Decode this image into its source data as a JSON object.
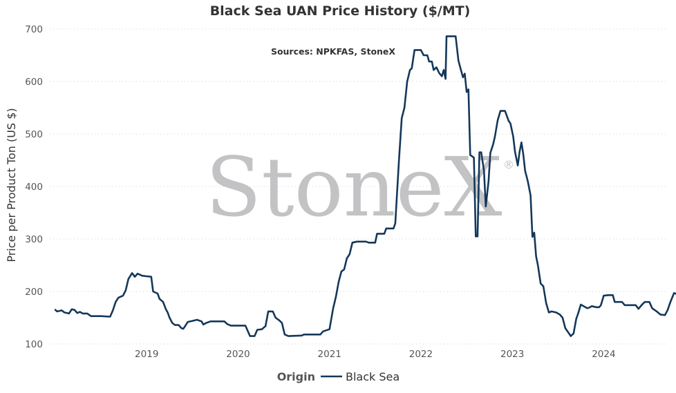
{
  "chart_data": {
    "type": "line",
    "title": "Black Sea UAN Price History ($/MT)",
    "annotation": "Sources: NPKFAS, StoneX",
    "watermark": "StoneX",
    "watermark_mark": "®",
    "ylabel": "Price per Product Ton (US $)",
    "xlabel": "",
    "ylim": [
      100,
      700
    ],
    "yticks": [
      "100",
      "200",
      "300",
      "400",
      "500",
      "600",
      "700"
    ],
    "xlim": [
      2018.0,
      2024.67
    ],
    "xticks": [
      {
        "label": "2019",
        "value": 2019.0
      },
      {
        "label": "2020",
        "value": 2020.0
      },
      {
        "label": "2021",
        "value": 2021.0
      },
      {
        "label": "2022",
        "value": 2022.0
      },
      {
        "label": "2023",
        "value": 2023.0
      },
      {
        "label": "2024",
        "value": 2024.0
      }
    ],
    "grid": "horizontal dotted",
    "legend": {
      "title": "Origin",
      "placement": "bottom-center"
    },
    "colors": {
      "series": "#14375a"
    },
    "series": [
      {
        "name": "Black Sea",
        "points": [
          [
            2018.0,
            165
          ],
          [
            2018.02,
            162
          ],
          [
            2018.07,
            164
          ],
          [
            2018.1,
            160
          ],
          [
            2018.15,
            158
          ],
          [
            2018.18,
            166
          ],
          [
            2018.21,
            165
          ],
          [
            2018.24,
            159
          ],
          [
            2018.27,
            161
          ],
          [
            2018.3,
            158
          ],
          [
            2018.35,
            158
          ],
          [
            2018.39,
            153
          ],
          [
            2018.5,
            153
          ],
          [
            2018.6,
            152
          ],
          [
            2018.63,
            164
          ],
          [
            2018.66,
            180
          ],
          [
            2018.69,
            188
          ],
          [
            2018.74,
            192
          ],
          [
            2018.77,
            202
          ],
          [
            2018.8,
            224
          ],
          [
            2018.84,
            235
          ],
          [
            2018.87,
            228
          ],
          [
            2018.9,
            234
          ],
          [
            2018.95,
            230
          ],
          [
            2019.0,
            229
          ],
          [
            2019.05,
            228
          ],
          [
            2019.07,
            200
          ],
          [
            2019.12,
            196
          ],
          [
            2019.14,
            186
          ],
          [
            2019.18,
            180
          ],
          [
            2019.21,
            166
          ],
          [
            2019.23,
            160
          ],
          [
            2019.25,
            150
          ],
          [
            2019.28,
            140
          ],
          [
            2019.31,
            136
          ],
          [
            2019.35,
            136
          ],
          [
            2019.38,
            130
          ],
          [
            2019.4,
            129
          ],
          [
            2019.42,
            134
          ],
          [
            2019.45,
            142
          ],
          [
            2019.5,
            144
          ],
          [
            2019.55,
            146
          ],
          [
            2019.6,
            143
          ],
          [
            2019.62,
            137
          ],
          [
            2019.65,
            140
          ],
          [
            2019.7,
            143
          ],
          [
            2019.85,
            143
          ],
          [
            2019.88,
            138
          ],
          [
            2019.92,
            135
          ],
          [
            2020.08,
            135
          ],
          [
            2020.1,
            127
          ],
          [
            2020.13,
            115
          ],
          [
            2020.18,
            115
          ],
          [
            2020.21,
            127
          ],
          [
            2020.26,
            128
          ],
          [
            2020.3,
            134
          ],
          [
            2020.33,
            162
          ],
          [
            2020.38,
            162
          ],
          [
            2020.41,
            150
          ],
          [
            2020.45,
            145
          ],
          [
            2020.48,
            140
          ],
          [
            2020.51,
            118
          ],
          [
            2020.55,
            115
          ],
          [
            2020.7,
            116
          ],
          [
            2020.72,
            118
          ],
          [
            2020.9,
            118
          ],
          [
            2020.93,
            124
          ],
          [
            2021.0,
            128
          ],
          [
            2021.04,
            168
          ],
          [
            2021.07,
            190
          ],
          [
            2021.1,
            218
          ],
          [
            2021.13,
            238
          ],
          [
            2021.16,
            242
          ],
          [
            2021.19,
            263
          ],
          [
            2021.22,
            271
          ],
          [
            2021.25,
            293
          ],
          [
            2021.3,
            295
          ],
          [
            2021.4,
            295
          ],
          [
            2021.43,
            293
          ],
          [
            2021.5,
            293
          ],
          [
            2021.52,
            310
          ],
          [
            2021.6,
            310
          ],
          [
            2021.62,
            320
          ],
          [
            2021.7,
            320
          ],
          [
            2021.72,
            330
          ],
          [
            2021.76,
            450
          ],
          [
            2021.79,
            530
          ],
          [
            2021.82,
            550
          ],
          [
            2021.85,
            600
          ],
          [
            2021.88,
            622
          ],
          [
            2021.9,
            625
          ],
          [
            2021.93,
            660
          ],
          [
            2022.0,
            660
          ],
          [
            2022.03,
            650
          ],
          [
            2022.07,
            650
          ],
          [
            2022.09,
            638
          ],
          [
            2022.12,
            638
          ],
          [
            2022.14,
            622
          ],
          [
            2022.17,
            627
          ],
          [
            2022.2,
            616
          ],
          [
            2022.23,
            610
          ],
          [
            2022.25,
            622
          ],
          [
            2022.27,
            605
          ],
          [
            2022.28,
            686
          ],
          [
            2022.38,
            686
          ],
          [
            2022.41,
            640
          ],
          [
            2022.43,
            627
          ],
          [
            2022.46,
            608
          ],
          [
            2022.48,
            615
          ],
          [
            2022.5,
            580
          ],
          [
            2022.52,
            585
          ],
          [
            2022.54,
            460
          ],
          [
            2022.58,
            455
          ],
          [
            2022.6,
            305
          ],
          [
            2022.62,
            305
          ],
          [
            2022.64,
            465
          ],
          [
            2022.66,
            465
          ],
          [
            2022.69,
            430
          ],
          [
            2022.71,
            362
          ],
          [
            2022.74,
            410
          ],
          [
            2022.76,
            464
          ],
          [
            2022.79,
            480
          ],
          [
            2022.81,
            495
          ],
          [
            2022.84,
            526
          ],
          [
            2022.87,
            544
          ],
          [
            2022.92,
            544
          ],
          [
            2022.96,
            525
          ],
          [
            2022.98,
            520
          ],
          [
            2023.01,
            495
          ],
          [
            2023.03,
            466
          ],
          [
            2023.06,
            440
          ],
          [
            2023.08,
            466
          ],
          [
            2023.1,
            484
          ],
          [
            2023.12,
            462
          ],
          [
            2023.14,
            430
          ],
          [
            2023.17,
            410
          ],
          [
            2023.2,
            383
          ],
          [
            2023.22,
            304
          ],
          [
            2023.24,
            312
          ],
          [
            2023.26,
            267
          ],
          [
            2023.28,
            250
          ],
          [
            2023.31,
            215
          ],
          [
            2023.34,
            210
          ],
          [
            2023.37,
            178
          ],
          [
            2023.4,
            160
          ],
          [
            2023.43,
            162
          ],
          [
            2023.48,
            160
          ],
          [
            2023.52,
            156
          ],
          [
            2023.55,
            150
          ],
          [
            2023.58,
            130
          ],
          [
            2023.6,
            125
          ],
          [
            2023.62,
            120
          ],
          [
            2023.64,
            115
          ],
          [
            2023.67,
            120
          ],
          [
            2023.7,
            148
          ],
          [
            2023.72,
            158
          ],
          [
            2023.75,
            175
          ],
          [
            2023.78,
            172
          ],
          [
            2023.82,
            168
          ],
          [
            2023.85,
            170
          ],
          [
            2023.87,
            172
          ],
          [
            2023.92,
            170
          ],
          [
            2023.95,
            170
          ],
          [
            2023.97,
            174
          ],
          [
            2024.0,
            192
          ],
          [
            2024.05,
            193
          ],
          [
            2024.1,
            193
          ],
          [
            2024.12,
            180
          ],
          [
            2024.15,
            180
          ],
          [
            2024.2,
            180
          ],
          [
            2024.23,
            174
          ],
          [
            2024.35,
            174
          ],
          [
            2024.38,
            167
          ],
          [
            2024.42,
            175
          ],
          [
            2024.45,
            180
          ],
          [
            2024.5,
            180
          ],
          [
            2024.53,
            168
          ],
          [
            2024.58,
            162
          ],
          [
            2024.62,
            156
          ],
          [
            2024.67,
            155
          ],
          [
            2024.7,
            165
          ],
          [
            2024.73,
            180
          ],
          [
            2024.77,
            197
          ],
          [
            2024.8,
            195
          ],
          [
            2024.85,
            176
          ],
          [
            2024.88,
            176
          ],
          [
            2024.94,
            176
          ]
        ]
      }
    ]
  }
}
